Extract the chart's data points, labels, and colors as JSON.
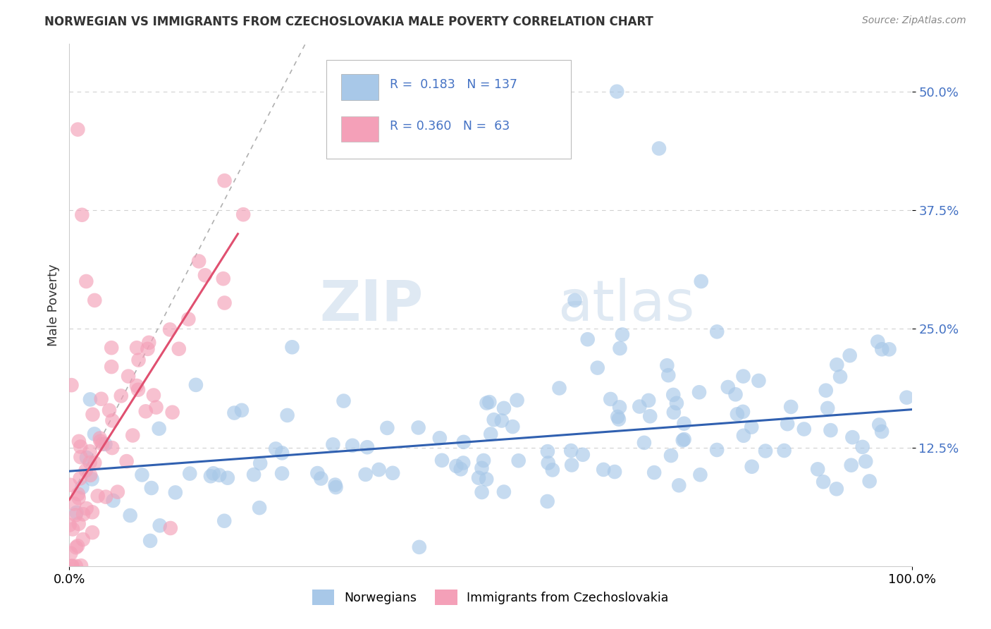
{
  "title": "NORWEGIAN VS IMMIGRANTS FROM CZECHOSLOVAKIA MALE POVERTY CORRELATION CHART",
  "source": "Source: ZipAtlas.com",
  "ylabel": "Male Poverty",
  "xlim": [
    0,
    100
  ],
  "ylim": [
    0,
    55
  ],
  "yticks": [
    12.5,
    25.0,
    37.5,
    50.0
  ],
  "ytick_labels": [
    "12.5%",
    "25.0%",
    "37.5%",
    "50.0%"
  ],
  "xtick_labels": [
    "0.0%",
    "100.0%"
  ],
  "R_norwegian": "0.183",
  "N_norwegian": "137",
  "R_czech": "0.360",
  "N_czech": "63",
  "norwegian_color": "#a8c8e8",
  "czech_color": "#f4a0b8",
  "norwegian_line_color": "#3060b0",
  "czech_line_color": "#e05070",
  "watermark_zip": "ZIP",
  "watermark_atlas": "atlas",
  "background_color": "#ffffff",
  "grid_color": "#d0d0d0",
  "title_color": "#333333",
  "stats_color": "#4472c4",
  "legend_label_norwegian": "Norwegians",
  "legend_label_czech": "Immigrants from Czechoslovakia"
}
